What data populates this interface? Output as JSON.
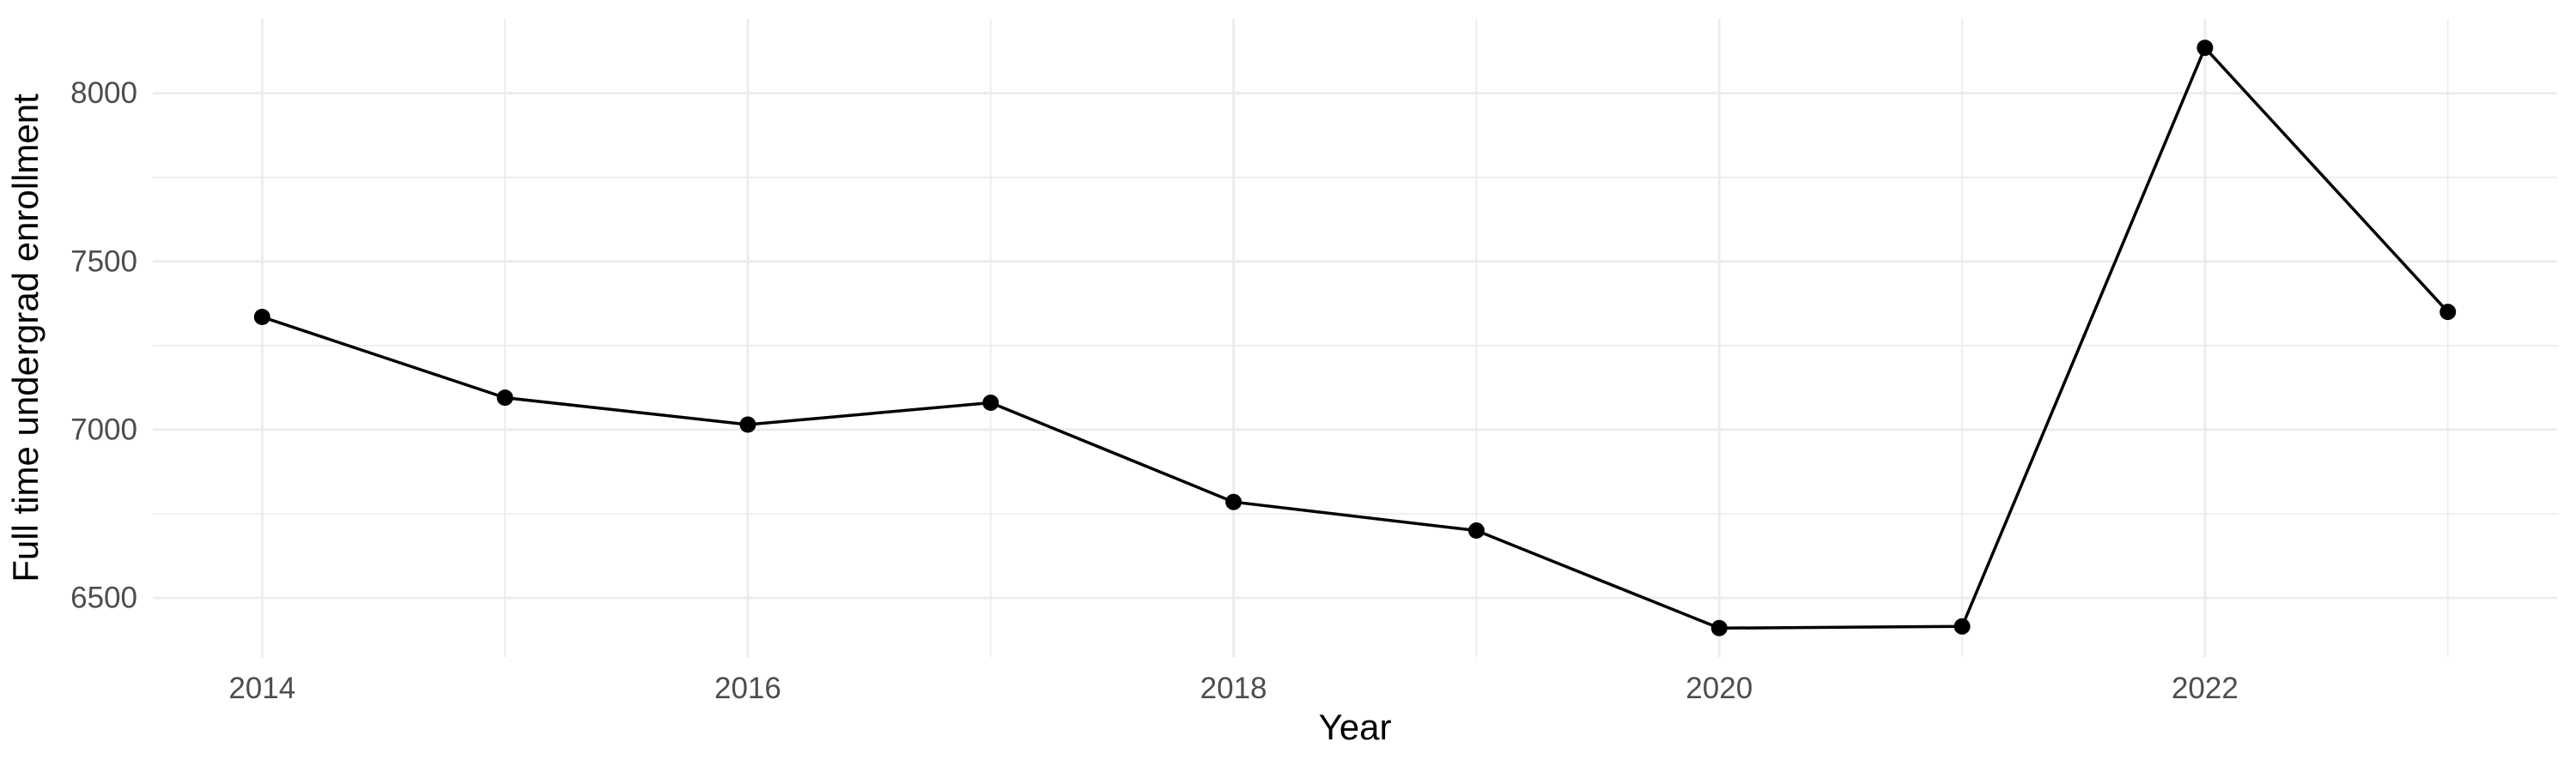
{
  "chart_data": {
    "type": "line",
    "title": "",
    "xlabel": "Year",
    "ylabel": "Full time undergrad enrollment",
    "x": [
      2014,
      2015,
      2016,
      2017,
      2018,
      2019,
      2020,
      2021,
      2022,
      2023
    ],
    "series": [
      {
        "name": "Full time undergrad enrollment",
        "values": [
          7335,
          7095,
          7015,
          7080,
          6785,
          6700,
          6410,
          6415,
          8135,
          7350
        ]
      }
    ],
    "x_ticks": [
      2014,
      2016,
      2018,
      2020,
      2022
    ],
    "y_ticks": [
      6500,
      7000,
      7500,
      8000
    ],
    "xlim": [
      2013.55,
      2023.45
    ],
    "ylim": [
      6324,
      8221
    ],
    "grid": "major-and-minor",
    "legend_position": "none",
    "colors": {
      "series": "#000000",
      "marker": "#000000",
      "gridline": "#ebebeb",
      "tick_label": "#4d4d4d",
      "axis_title": "#000000",
      "background": "#ffffff"
    },
    "marker": "filled-circle"
  }
}
